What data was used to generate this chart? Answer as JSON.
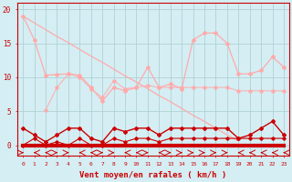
{
  "x": [
    0,
    1,
    2,
    3,
    4,
    5,
    6,
    7,
    8,
    9,
    10,
    11,
    12,
    13,
    14,
    15,
    16,
    17,
    18,
    19,
    20,
    21,
    22,
    23
  ],
  "series_straight": [
    19,
    18.0,
    17.0,
    16.0,
    15.1,
    14.1,
    13.1,
    12.2,
    11.2,
    10.2,
    9.3,
    8.3,
    7.3,
    6.4,
    5.4,
    4.4,
    3.5,
    2.5,
    1.5,
    0.6,
    null,
    null,
    null,
    null
  ],
  "series_rafales": [
    19,
    15.5,
    10.3,
    10.4,
    10.5,
    10.3,
    8.5,
    6.5,
    8.5,
    8.0,
    8.5,
    11.5,
    8.5,
    9.0,
    8.3,
    15.5,
    16.5,
    16.5,
    15.0,
    10.5,
    10.5,
    11.0,
    13.0,
    11.5
  ],
  "series_vent_mid": [
    null,
    null,
    5.2,
    8.5,
    10.5,
    10.0,
    8.3,
    7.0,
    9.5,
    8.3,
    8.5,
    8.8,
    8.5,
    8.5,
    8.5,
    8.5,
    8.5,
    8.5,
    8.5,
    8.0,
    8.0,
    8.0,
    8.0,
    8.0
  ],
  "series_vent_upper": [
    2.5,
    1.5,
    0.5,
    1.5,
    2.5,
    2.5,
    1.0,
    0.5,
    2.5,
    2.0,
    2.5,
    2.5,
    1.5,
    2.5,
    2.5,
    2.5,
    2.5,
    2.5,
    2.5,
    1.0,
    1.5,
    2.5,
    3.5,
    1.5
  ],
  "series_vent_lower": [
    0.0,
    1.0,
    0.0,
    0.5,
    0.0,
    1.0,
    0.0,
    0.0,
    1.0,
    0.5,
    1.0,
    1.0,
    0.5,
    1.0,
    1.0,
    1.0,
    1.0,
    1.0,
    1.0,
    1.0,
    1.0,
    1.0,
    1.0,
    1.0
  ],
  "series_vent_zero": [
    0,
    0,
    0,
    0,
    0,
    0,
    0,
    0,
    0,
    0,
    0,
    0,
    0,
    0,
    0,
    0,
    0,
    0,
    0,
    0,
    0,
    0,
    0,
    0
  ],
  "arrow_dirs": [
    1,
    0,
    0,
    1,
    1,
    0,
    0,
    1,
    1,
    0,
    0,
    1,
    0,
    1,
    1,
    1,
    1,
    1,
    1,
    0,
    0,
    0,
    0,
    0
  ],
  "bg_color": "#d4eef4",
  "grid_color": "#aacccc",
  "line_color_dark": "#cc0000",
  "line_color_light": "#ffaaaa",
  "xlabel": "Vent moyen/en rafales ( km/h )",
  "ylim": [
    -1.5,
    21
  ],
  "xlim": [
    -0.5,
    23.5
  ],
  "yticks": [
    0,
    5,
    10,
    15,
    20
  ],
  "xticks": [
    0,
    1,
    2,
    3,
    4,
    5,
    6,
    7,
    8,
    9,
    10,
    11,
    12,
    13,
    14,
    15,
    16,
    17,
    18,
    19,
    20,
    21,
    22,
    23
  ]
}
